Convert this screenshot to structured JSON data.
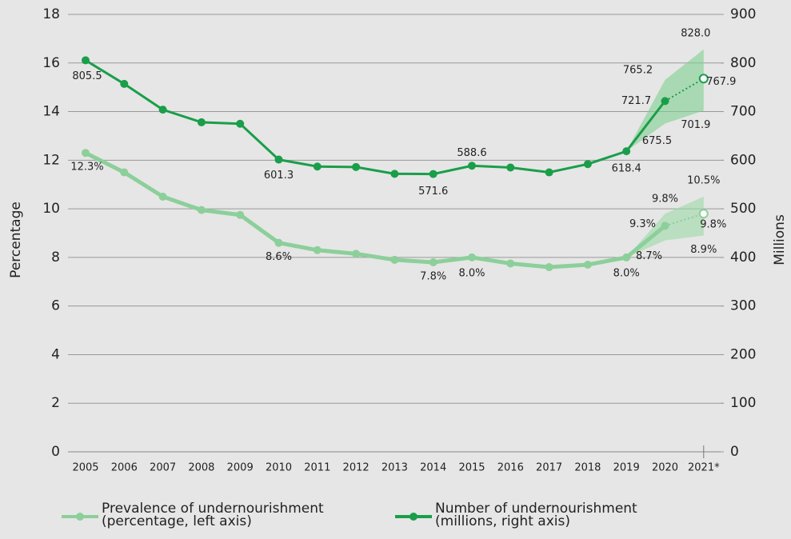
{
  "chart_data": {
    "type": "line",
    "categories": [
      "2005",
      "2006",
      "2007",
      "2008",
      "2009",
      "2010",
      "2011",
      "2012",
      "2013",
      "2014",
      "2015",
      "2016",
      "2017",
      "2018",
      "2019",
      "2020",
      "2021*"
    ],
    "ylabel": "Percentage",
    "y2label": "Millions",
    "ylim": [
      0,
      18
    ],
    "yticks": [
      0,
      2,
      4,
      6,
      8,
      10,
      12,
      14,
      16,
      18
    ],
    "y2lim": [
      0,
      900
    ],
    "y2ticks": [
      0,
      100,
      200,
      300,
      400,
      500,
      600,
      700,
      800,
      900
    ],
    "grid": true,
    "legend": "bottom",
    "series": [
      {
        "name": "Prevalence of undernourishment (percentage, left axis)",
        "color": "#8ccf9a",
        "values": [
          12.3,
          11.5,
          10.5,
          9.95,
          9.75,
          8.6,
          8.3,
          8.15,
          7.9,
          7.8,
          8.0,
          7.75,
          7.6,
          7.7,
          8.0,
          9.3,
          9.8
        ],
        "value_labels": [
          "12.3%",
          null,
          null,
          null,
          null,
          "8.6%",
          null,
          null,
          null,
          "7.8%",
          "8.0%",
          null,
          null,
          null,
          "8.0%",
          "9.3%",
          "9.8%"
        ],
        "upper": [
          null,
          null,
          null,
          null,
          null,
          null,
          null,
          null,
          null,
          null,
          null,
          null,
          null,
          null,
          null,
          9.8,
          10.5
        ],
        "upper_labels": [
          null,
          null,
          null,
          null,
          null,
          null,
          null,
          null,
          null,
          null,
          null,
          null,
          null,
          null,
          null,
          "9.8%",
          "10.5%"
        ],
        "lower": [
          null,
          null,
          null,
          null,
          null,
          null,
          null,
          null,
          null,
          null,
          null,
          null,
          null,
          null,
          null,
          8.7,
          8.9
        ],
        "lower_labels": [
          null,
          null,
          null,
          null,
          null,
          null,
          null,
          null,
          null,
          null,
          null,
          null,
          null,
          null,
          null,
          "8.7%",
          "8.9%"
        ]
      },
      {
        "name": "Number of undernourishment (millions, right axis)",
        "color": "#1a9e4a",
        "axis": "y2",
        "values": [
          805.5,
          757,
          704,
          678,
          675,
          601.3,
          587,
          586,
          572,
          571.6,
          588.6,
          585,
          575,
          592,
          618.4,
          721.7,
          767.9
        ],
        "value_labels": [
          "805.5",
          null,
          null,
          null,
          null,
          "601.3",
          null,
          null,
          null,
          "571.6",
          "588.6",
          null,
          null,
          null,
          "618.4",
          "721.7",
          "767.9"
        ],
        "upper": [
          null,
          null,
          null,
          null,
          null,
          null,
          null,
          null,
          null,
          null,
          null,
          null,
          null,
          null,
          null,
          765.2,
          828.0
        ],
        "upper_labels": [
          null,
          null,
          null,
          null,
          null,
          null,
          null,
          null,
          null,
          null,
          null,
          null,
          null,
          null,
          null,
          "765.2",
          "828.0"
        ],
        "lower": [
          null,
          null,
          null,
          null,
          null,
          null,
          null,
          null,
          null,
          null,
          null,
          null,
          null,
          null,
          null,
          675.5,
          701.9
        ],
        "lower_labels": [
          null,
          null,
          null,
          null,
          null,
          null,
          null,
          null,
          null,
          null,
          null,
          null,
          null,
          null,
          null,
          "675.5",
          "701.9"
        ]
      }
    ]
  }
}
